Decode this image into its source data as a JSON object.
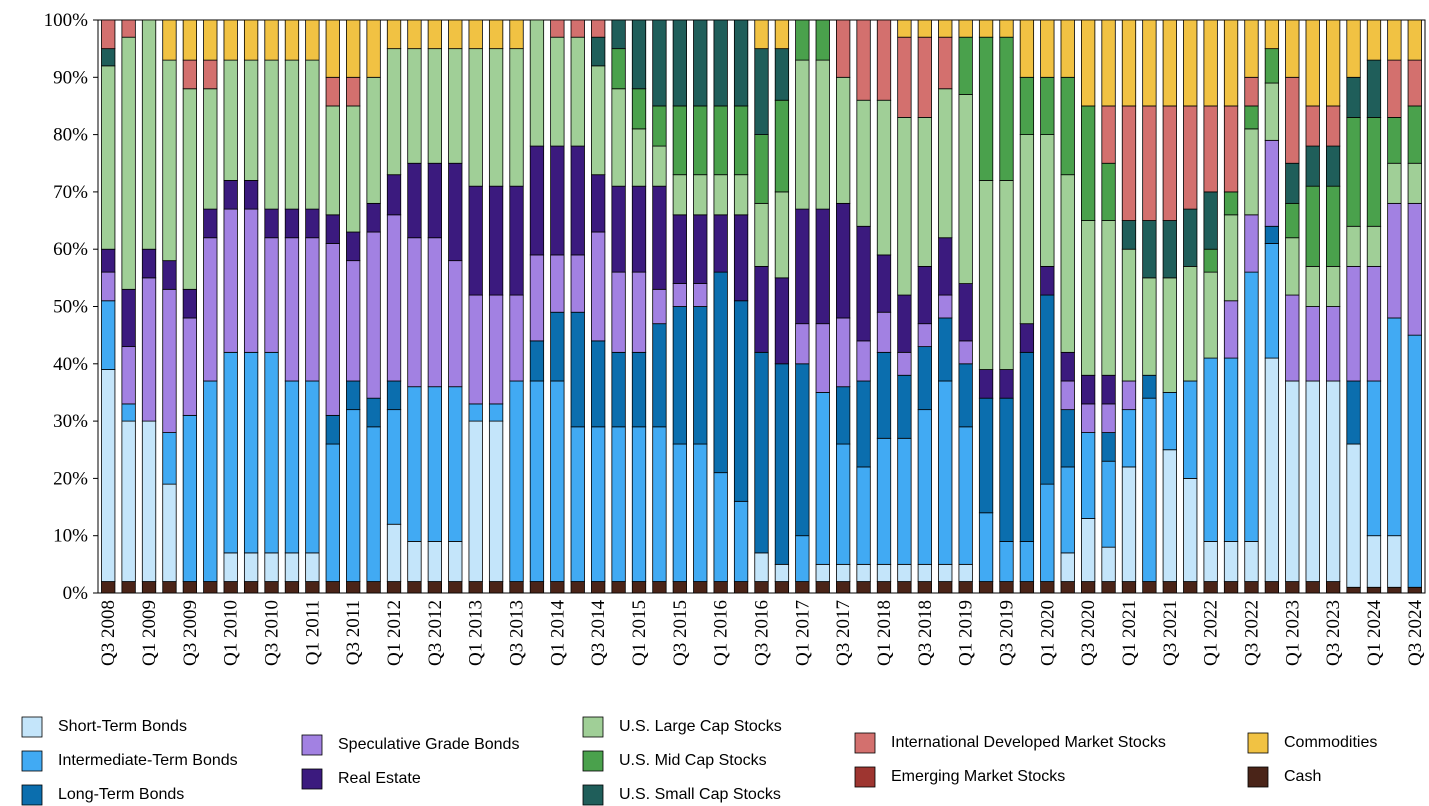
{
  "chart_data": {
    "type": "stacked_bar",
    "categories": [
      "Q3 2008",
      null,
      "Q1 2009",
      null,
      "Q3 2009",
      null,
      "Q1 2010",
      null,
      "Q3 2010",
      null,
      "Q1 2011",
      null,
      "Q3 2011",
      null,
      "Q1 2012",
      null,
      "Q3 2012",
      null,
      "Q1 2013",
      null,
      "Q3 2013",
      null,
      "Q1 2014",
      null,
      "Q3 2014",
      null,
      "Q1 2015",
      null,
      "Q3 2015",
      null,
      "Q1 2016",
      null,
      "Q3 2016",
      null,
      "Q1 2017",
      null,
      "Q3 2017",
      null,
      "Q1 2018",
      null,
      "Q3 2018",
      null,
      "Q1 2019",
      null,
      "Q3 2019",
      null,
      "Q1 2020",
      null,
      "Q3 2020",
      null,
      "Q1 2021",
      null,
      "Q3 2021",
      null,
      "Q1 2022",
      null,
      "Q3 2022",
      null,
      "Q1 2023",
      null,
      "Q3 2023",
      null,
      "Q1 2024",
      null,
      "Q3 2024"
    ],
    "ylim": [
      0,
      100
    ],
    "yticks": [
      {
        "value": 0,
        "label": "0%"
      },
      {
        "value": 10,
        "label": "10%"
      },
      {
        "value": 20,
        "label": "20%"
      },
      {
        "value": 30,
        "label": "30%"
      },
      {
        "value": 40,
        "label": "40%"
      },
      {
        "value": 50,
        "label": "50%"
      },
      {
        "value": 60,
        "label": "60%"
      },
      {
        "value": 70,
        "label": "70%"
      },
      {
        "value": 80,
        "label": "80%"
      },
      {
        "value": 90,
        "label": "90%"
      },
      {
        "value": 100,
        "label": "100%"
      }
    ],
    "grid": false,
    "series": [
      {
        "name": "Cash",
        "color": "#4a2418",
        "values": [
          2,
          2,
          2,
          2,
          2,
          2,
          2,
          2,
          2,
          2,
          2,
          2,
          2,
          2,
          2,
          2,
          2,
          2,
          2,
          2,
          2,
          2,
          2,
          2,
          2,
          2,
          2,
          2,
          2,
          2,
          2,
          2,
          2,
          2,
          2,
          2,
          2,
          2,
          2,
          2,
          2,
          2,
          2,
          2,
          2,
          2,
          2,
          2,
          2,
          2,
          2,
          2,
          2,
          2,
          2,
          2,
          2,
          2,
          2,
          2,
          2,
          1,
          1,
          1,
          1
        ]
      },
      {
        "name": "Short-Term Bonds",
        "color": "#c4e5fa",
        "values": [
          37,
          28,
          28,
          17,
          0,
          0,
          5,
          5,
          5,
          5,
          5,
          0,
          0,
          0,
          10,
          7,
          7,
          7,
          28,
          28,
          0,
          0,
          0,
          0,
          0,
          0,
          0,
          0,
          0,
          0,
          0,
          0,
          5,
          3,
          0,
          3,
          3,
          3,
          3,
          3,
          3,
          3,
          3,
          0,
          0,
          0,
          0,
          5,
          11,
          6,
          20,
          0,
          23,
          18,
          7,
          7,
          7,
          39,
          35,
          35,
          35,
          25,
          9,
          9,
          0
        ]
      },
      {
        "name": "Intermediate-Term Bonds",
        "color": "#41aaf3",
        "values": [
          12,
          3,
          0,
          9,
          29,
          35,
          35,
          35,
          35,
          30,
          30,
          24,
          30,
          27,
          20,
          27,
          27,
          27,
          3,
          3,
          35,
          35,
          35,
          27,
          27,
          27,
          27,
          27,
          24,
          24,
          19,
          14,
          0,
          0,
          8,
          30,
          21,
          17,
          22,
          22,
          27,
          32,
          24,
          12,
          7,
          7,
          17,
          15,
          15,
          15,
          10,
          32,
          10,
          17,
          32,
          32,
          47,
          20,
          0,
          0,
          0,
          0,
          27,
          38,
          44
        ]
      },
      {
        "name": "Long-Term Bonds",
        "color": "#0b6eae",
        "values": [
          0,
          0,
          0,
          0,
          0,
          0,
          0,
          0,
          0,
          0,
          0,
          5,
          5,
          5,
          5,
          0,
          0,
          0,
          0,
          0,
          0,
          7,
          12,
          20,
          15,
          13,
          13,
          18,
          24,
          24,
          35,
          35,
          35,
          35,
          30,
          0,
          10,
          15,
          15,
          11,
          11,
          11,
          11,
          20,
          25,
          33,
          33,
          10,
          0,
          5,
          0,
          4,
          0,
          0,
          0,
          0,
          0,
          3,
          0,
          0,
          0,
          11,
          0,
          0,
          0
        ]
      },
      {
        "name": "Speculative Grade Bonds",
        "color": "#a281e2",
        "values": [
          5,
          10,
          25,
          25,
          17,
          25,
          25,
          25,
          20,
          25,
          25,
          30,
          21,
          29,
          29,
          26,
          26,
          22,
          19,
          19,
          15,
          15,
          10,
          10,
          19,
          14,
          14,
          6,
          4,
          4,
          0,
          0,
          0,
          0,
          7,
          12,
          12,
          7,
          7,
          4,
          4,
          4,
          4,
          0,
          0,
          0,
          0,
          5,
          5,
          5,
          5,
          0,
          0,
          0,
          0,
          10,
          10,
          15,
          15,
          13,
          13,
          20,
          20,
          20,
          23
        ]
      },
      {
        "name": "Real Estate",
        "color": "#3b1a7e",
        "values": [
          4,
          10,
          5,
          5,
          5,
          5,
          5,
          5,
          5,
          5,
          5,
          5,
          5,
          5,
          7,
          13,
          13,
          17,
          19,
          19,
          19,
          19,
          19,
          19,
          10,
          15,
          15,
          18,
          12,
          12,
          10,
          15,
          15,
          15,
          20,
          20,
          20,
          20,
          10,
          10,
          10,
          10,
          10,
          5,
          5,
          5,
          5,
          5,
          5,
          5,
          0,
          0,
          0,
          0,
          0,
          0,
          0,
          0,
          0,
          0,
          0,
          0,
          0,
          0,
          0
        ]
      },
      {
        "name": "U.S. Large Cap Stocks",
        "color": "#a0cf97",
        "values": [
          32,
          44,
          40,
          35,
          35,
          21,
          21,
          21,
          26,
          26,
          26,
          19,
          22,
          22,
          22,
          20,
          20,
          20,
          24,
          24,
          24,
          22,
          19,
          19,
          19,
          17,
          10,
          7,
          7,
          7,
          7,
          7,
          11,
          15,
          26,
          26,
          22,
          22,
          27,
          31,
          26,
          26,
          33,
          33,
          33,
          33,
          23,
          31,
          27,
          27,
          23,
          17,
          20,
          20,
          15,
          15,
          15,
          10,
          10,
          7,
          7,
          7,
          7,
          7,
          7
        ]
      },
      {
        "name": "U.S. Mid Cap Stocks",
        "color": "#4aa14c",
        "values": [
          0,
          0,
          0,
          0,
          0,
          0,
          0,
          0,
          0,
          0,
          0,
          0,
          0,
          0,
          0,
          0,
          0,
          0,
          0,
          0,
          0,
          0,
          0,
          0,
          0,
          7,
          7,
          7,
          12,
          12,
          12,
          12,
          12,
          16,
          7,
          7,
          0,
          0,
          0,
          0,
          0,
          0,
          10,
          25,
          25,
          10,
          10,
          17,
          20,
          10,
          0,
          0,
          0,
          0,
          4,
          4,
          4,
          6,
          6,
          14,
          14,
          19,
          19,
          8,
          10
        ]
      },
      {
        "name": "U.S. Small Cap Stocks",
        "color": "#1f5e5a",
        "values": [
          3,
          0,
          0,
          0,
          0,
          0,
          0,
          0,
          0,
          0,
          0,
          0,
          0,
          0,
          0,
          0,
          0,
          0,
          0,
          0,
          0,
          0,
          0,
          0,
          5,
          5,
          12,
          15,
          15,
          15,
          15,
          15,
          15,
          9,
          0,
          0,
          0,
          0,
          0,
          0,
          0,
          0,
          0,
          0,
          0,
          0,
          0,
          0,
          0,
          0,
          5,
          10,
          10,
          10,
          10,
          0,
          0,
          0,
          7,
          7,
          7,
          7,
          10,
          0,
          0
        ]
      },
      {
        "name": "International Developed Market Stocks",
        "color": "#d3706e",
        "values": [
          5,
          3,
          0,
          0,
          5,
          5,
          0,
          0,
          0,
          0,
          0,
          5,
          5,
          0,
          0,
          0,
          0,
          0,
          0,
          0,
          0,
          0,
          3,
          3,
          3,
          0,
          0,
          0,
          0,
          0,
          0,
          0,
          0,
          0,
          0,
          0,
          10,
          14,
          14,
          14,
          14,
          9,
          0,
          0,
          0,
          0,
          0,
          0,
          0,
          10,
          20,
          20,
          20,
          18,
          15,
          15,
          5,
          0,
          15,
          7,
          7,
          0,
          0,
          10,
          8
        ]
      },
      {
        "name": "Emerging Market Stocks",
        "color": "#9e3530",
        "values": [
          0,
          0,
          0,
          0,
          0,
          0,
          0,
          0,
          0,
          0,
          0,
          0,
          0,
          0,
          0,
          0,
          0,
          0,
          0,
          0,
          0,
          0,
          0,
          0,
          0,
          0,
          0,
          0,
          0,
          0,
          0,
          0,
          0,
          0,
          0,
          0,
          0,
          0,
          0,
          0,
          0,
          0,
          0,
          0,
          0,
          0,
          0,
          0,
          0,
          0,
          0,
          0,
          0,
          0,
          0,
          0,
          0,
          0,
          0,
          0,
          0,
          0,
          0,
          0,
          0
        ]
      },
      {
        "name": "Commodities",
        "color": "#f1c243",
        "values": [
          0,
          0,
          0,
          7,
          7,
          7,
          7,
          7,
          7,
          7,
          7,
          10,
          10,
          10,
          5,
          5,
          5,
          5,
          5,
          5,
          5,
          0,
          0,
          0,
          0,
          0,
          0,
          0,
          0,
          0,
          0,
          0,
          5,
          5,
          0,
          0,
          0,
          0,
          0,
          3,
          3,
          3,
          3,
          3,
          3,
          10,
          10,
          10,
          15,
          15,
          15,
          15,
          15,
          15,
          15,
          15,
          10,
          5,
          10,
          15,
          15,
          10,
          7,
          7,
          7
        ]
      }
    ]
  }
}
